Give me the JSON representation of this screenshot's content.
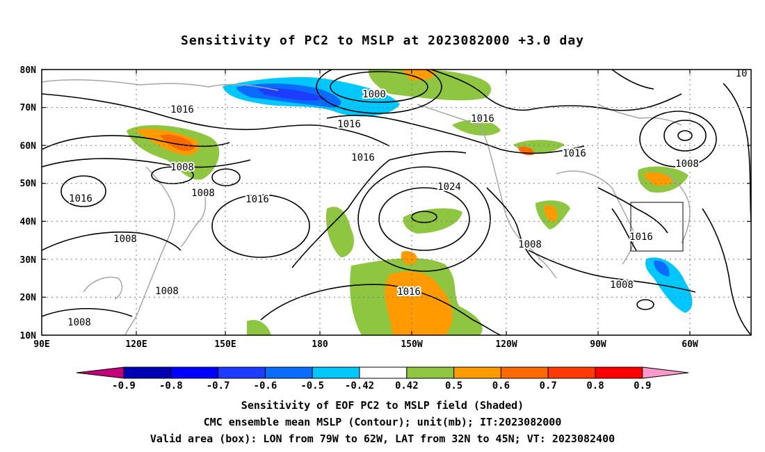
{
  "title": "Sensitivity of PC2 to MSLP at 2023082000 +3.0 day",
  "lat_labels": [
    "80N",
    "70N",
    "60N",
    "50N",
    "40N",
    "30N",
    "20N",
    "10N"
  ],
  "lon_labels": [
    "90E",
    "120E",
    "150E",
    "180",
    "150W",
    "120W",
    "90W",
    "60W"
  ],
  "contour_labels": [
    {
      "text": "1016"
    },
    {
      "text": "1000"
    },
    {
      "text": "1016"
    },
    {
      "text": "1016"
    },
    {
      "text": "1016"
    },
    {
      "text": "1008"
    },
    {
      "text": "1008"
    },
    {
      "text": "1016"
    },
    {
      "text": "1016"
    },
    {
      "text": "1024"
    },
    {
      "text": "1016"
    },
    {
      "text": "1008"
    },
    {
      "text": "1008"
    },
    {
      "text": "1008"
    },
    {
      "text": "1016"
    },
    {
      "text": "1008"
    },
    {
      "text": "1016"
    },
    {
      "text": "1008"
    },
    {
      "text": "1008"
    },
    {
      "text": "10"
    }
  ],
  "colorbar": {
    "colors": [
      "#c2007a",
      "#0000b4",
      "#0000ff",
      "#1c3cff",
      "#0a6cff",
      "#0aa0ff",
      "#00c8ff",
      "#ffffff",
      "#8fc641",
      "#ff9a00",
      "#ff6a00",
      "#ff3a00",
      "#ff0000",
      "#ff9acd"
    ],
    "labels": [
      "-0.9",
      "-0.8",
      "-0.7",
      "-0.6",
      "-0.5",
      "-0.42",
      "0.42",
      "0.5",
      "0.6",
      "0.7",
      "0.8",
      "0.9"
    ]
  },
  "valid_box": {
    "lon_from": "79W",
    "lon_to": "62W",
    "lat_from": "32N",
    "lat_to": "45N"
  },
  "footer": {
    "line1": "Sensitivity of EOF PC2 to MSLP field (Shaded)",
    "line2": "CMC ensemble mean MSLP (Contour); unit(mb); IT:2023082000",
    "line3": "Valid area (box): LON from 79W to 62W, LAT from 32N to 45N; VT: 2023082400"
  }
}
